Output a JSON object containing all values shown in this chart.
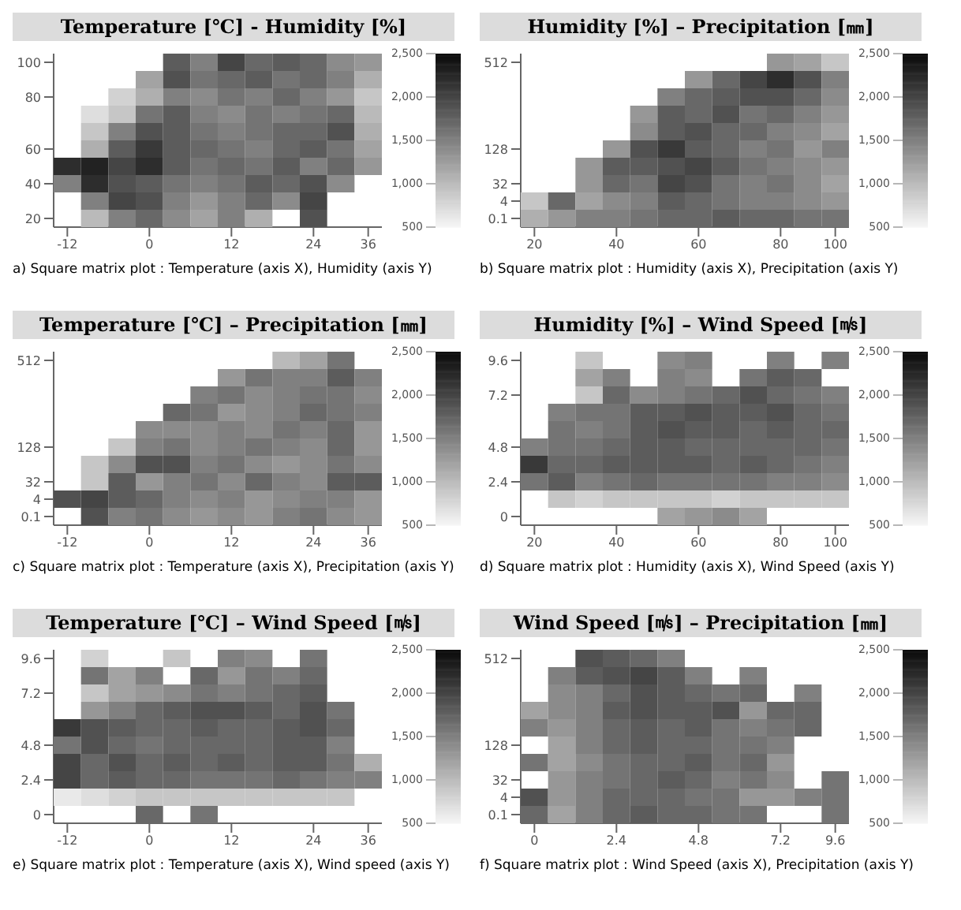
{
  "chart_data": [
    {
      "type": "heatmap",
      "title": "Temperature [℃] - Humidity [%]",
      "annotations": [
        "a) Square matrix plot : Temperature (axis X), Humidity (axis Y)"
      ],
      "categories": [
        "-12",
        null,
        null,
        "0",
        null,
        null,
        "12",
        null,
        null,
        "24",
        null,
        "36"
      ],
      "y_categories": [
        "100",
        null,
        "80",
        null,
        null,
        "60",
        null,
        "40",
        null,
        "20"
      ],
      "clim": [
        500,
        2500
      ],
      "cticks": [
        {
          "value": 500,
          "label": "500"
        },
        {
          "value": 1000,
          "label": "1,000"
        },
        {
          "value": 1500,
          "label": "1,500"
        },
        {
          "value": 2000,
          "label": "2,000"
        },
        {
          "value": 2500,
          "label": "2,500"
        }
      ],
      "cells": [
        [
          null,
          null,
          null,
          null,
          1800,
          1500,
          2000,
          1700,
          1800,
          1700,
          1400,
          1300
        ],
        [
          null,
          null,
          null,
          1200,
          1900,
          1600,
          1700,
          1800,
          1600,
          1700,
          1500,
          1100
        ],
        [
          null,
          null,
          800,
          1100,
          1500,
          1400,
          1600,
          1500,
          1700,
          1500,
          1300,
          900
        ],
        [
          null,
          700,
          900,
          1600,
          1800,
          1500,
          1400,
          1600,
          1500,
          1600,
          1700,
          1000
        ],
        [
          null,
          900,
          1500,
          1900,
          1800,
          1600,
          1500,
          1600,
          1700,
          1700,
          1900,
          1100
        ],
        [
          null,
          1100,
          1800,
          2100,
          1800,
          1700,
          1600,
          1500,
          1700,
          1800,
          1600,
          1200
        ],
        [
          2200,
          2300,
          2000,
          2200,
          1800,
          1600,
          1700,
          1600,
          1800,
          1500,
          1700,
          1300
        ],
        [
          1500,
          2200,
          1900,
          1800,
          1600,
          1500,
          1600,
          1800,
          1700,
          1900,
          1400,
          null
        ],
        [
          null,
          1500,
          2000,
          1900,
          1500,
          1300,
          1500,
          1700,
          1400,
          2000,
          null,
          null
        ],
        [
          null,
          1000,
          1500,
          1700,
          1400,
          1200,
          1500,
          1100,
          null,
          1900,
          null,
          null
        ]
      ]
    },
    {
      "type": "heatmap",
      "title": "Humidity [%] – Precipitation [㎜]",
      "annotations": [
        "b) Square matrix plot : Humidity (axis X), Precipitation (axis Y)"
      ],
      "categories": [
        "20",
        null,
        null,
        "40",
        null,
        null,
        "60",
        null,
        null,
        "80",
        null,
        "100"
      ],
      "y_categories": [
        "512",
        null,
        null,
        null,
        null,
        "128",
        null,
        "32",
        "4",
        "0.1"
      ],
      "clim": [
        500,
        2500
      ],
      "cticks": [
        {
          "value": 500,
          "label": "500"
        },
        {
          "value": 1000,
          "label": "1,000"
        },
        {
          "value": 1500,
          "label": "1,500"
        },
        {
          "value": 2000,
          "label": "2,000"
        },
        {
          "value": 2500,
          "label": "2,500"
        }
      ],
      "cells": [
        [
          null,
          null,
          null,
          null,
          null,
          null,
          null,
          null,
          null,
          1300,
          1200,
          900
        ],
        [
          null,
          null,
          null,
          null,
          null,
          null,
          1300,
          1700,
          2000,
          2200,
          1900,
          1500
        ],
        [
          null,
          null,
          null,
          null,
          null,
          1500,
          1700,
          1800,
          1900,
          1900,
          1700,
          1400
        ],
        [
          null,
          null,
          null,
          null,
          1300,
          1800,
          1700,
          1900,
          1600,
          1700,
          1500,
          1300
        ],
        [
          null,
          null,
          null,
          null,
          1400,
          1800,
          1900,
          1700,
          1700,
          1500,
          1400,
          1200
        ],
        [
          null,
          null,
          null,
          1300,
          1900,
          2100,
          1800,
          1700,
          1500,
          1600,
          1300,
          1500
        ],
        [
          null,
          null,
          1300,
          1800,
          1800,
          1900,
          2000,
          1800,
          1600,
          1500,
          1400,
          1300
        ],
        [
          null,
          null,
          1300,
          1700,
          1600,
          2000,
          1900,
          1600,
          1500,
          1600,
          1400,
          1200
        ],
        [
          900,
          1700,
          1200,
          1400,
          1500,
          1800,
          1700,
          1600,
          1500,
          1500,
          1400,
          1300
        ],
        [
          1100,
          1300,
          1500,
          1500,
          1600,
          1700,
          1700,
          1800,
          1700,
          1700,
          1600,
          1600
        ]
      ]
    },
    {
      "type": "heatmap",
      "title": "Temperature [℃] – Precipitation [㎜]",
      "annotations": [
        "c) Square matrix plot : Temperature (axis X), Precipitation (axis Y)"
      ],
      "categories": [
        "-12",
        null,
        null,
        "0",
        null,
        null,
        "12",
        null,
        null,
        "24",
        null,
        "36"
      ],
      "y_categories": [
        "512",
        null,
        null,
        null,
        null,
        "128",
        null,
        "32",
        "4",
        "0.1"
      ],
      "clim": [
        500,
        2500
      ],
      "cticks": [
        {
          "value": 500,
          "label": "500"
        },
        {
          "value": 1000,
          "label": "1,000"
        },
        {
          "value": 1500,
          "label": "1,500"
        },
        {
          "value": 2000,
          "label": "2,000"
        },
        {
          "value": 2500,
          "label": "2,500"
        }
      ],
      "cells": [
        [
          null,
          null,
          null,
          null,
          null,
          null,
          null,
          null,
          1000,
          1200,
          1600,
          null
        ],
        [
          null,
          null,
          null,
          null,
          null,
          null,
          1300,
          1600,
          1500,
          1500,
          1800,
          1500
        ],
        [
          null,
          null,
          null,
          null,
          null,
          1500,
          1600,
          1400,
          1500,
          1600,
          1600,
          1400
        ],
        [
          null,
          null,
          null,
          null,
          1700,
          1600,
          1300,
          1400,
          1500,
          1700,
          1600,
          1500
        ],
        [
          null,
          null,
          null,
          1400,
          1400,
          1400,
          1500,
          1400,
          1600,
          1500,
          1700,
          1300
        ],
        [
          null,
          null,
          900,
          1500,
          1600,
          1400,
          1500,
          1600,
          1500,
          1400,
          1700,
          1300
        ],
        [
          null,
          900,
          1400,
          1900,
          1900,
          1500,
          1600,
          1400,
          1300,
          1400,
          1600,
          1400
        ],
        [
          null,
          900,
          1800,
          1300,
          1500,
          1600,
          1400,
          1700,
          1500,
          1400,
          1800,
          1800
        ],
        [
          1900,
          2000,
          1800,
          1700,
          1500,
          1400,
          1500,
          1300,
          1400,
          1500,
          1500,
          1300
        ],
        [
          null,
          1900,
          1500,
          1600,
          1400,
          1300,
          1400,
          1300,
          1500,
          1600,
          1400,
          1300
        ]
      ]
    },
    {
      "type": "heatmap",
      "title": "Humidity [%] – Wind Speed [㎧]",
      "annotations": [
        "d) Square matrix plot : Humidity (axis X), Wind Speed (axis Y)"
      ],
      "categories": [
        "20",
        null,
        null,
        "40",
        null,
        null,
        "60",
        null,
        null,
        "80",
        null,
        "100"
      ],
      "y_categories": [
        "9.6",
        null,
        "7.2",
        null,
        null,
        "4.8",
        null,
        "2.4",
        null,
        "0"
      ],
      "clim": [
        500,
        2500
      ],
      "cticks": [
        {
          "value": 500,
          "label": "500"
        },
        {
          "value": 1000,
          "label": "1,000"
        },
        {
          "value": 1500,
          "label": "1,500"
        },
        {
          "value": 2000,
          "label": "2,000"
        },
        {
          "value": 2500,
          "label": "2,500"
        }
      ],
      "cells": [
        [
          null,
          null,
          900,
          null,
          null,
          1400,
          1500,
          null,
          null,
          1500,
          null,
          1500
        ],
        [
          null,
          null,
          1200,
          1500,
          null,
          1500,
          1400,
          null,
          1600,
          1800,
          1700,
          null
        ],
        [
          null,
          null,
          900,
          1700,
          1400,
          1500,
          1600,
          1700,
          1900,
          1700,
          1600,
          1500
        ],
        [
          null,
          1500,
          1600,
          1600,
          1800,
          1800,
          1900,
          1800,
          1800,
          1900,
          1700,
          1600
        ],
        [
          null,
          1600,
          1500,
          1600,
          1800,
          1900,
          1800,
          1800,
          1700,
          1800,
          1700,
          1700
        ],
        [
          1500,
          1600,
          1600,
          1700,
          1800,
          1800,
          1700,
          1700,
          1700,
          1700,
          1700,
          1600
        ],
        [
          2100,
          1700,
          1700,
          1800,
          1800,
          1800,
          1800,
          1700,
          1800,
          1700,
          1600,
          1500
        ],
        [
          1600,
          1800,
          1500,
          1600,
          1700,
          1600,
          1600,
          1600,
          1600,
          1500,
          1500,
          1400
        ],
        [
          null,
          900,
          800,
          900,
          900,
          900,
          900,
          800,
          900,
          900,
          900,
          900
        ],
        [
          null,
          null,
          null,
          null,
          null,
          1200,
          1300,
          1400,
          1200,
          null,
          null,
          null
        ]
      ]
    },
    {
      "type": "heatmap",
      "title": "Temperature [℃] – Wind Speed [㎧]",
      "annotations": [
        "e) Square matrix plot : Temperature (axis X), Wind speed (axis Y)"
      ],
      "categories": [
        "-12",
        null,
        null,
        "0",
        null,
        null,
        "12",
        null,
        null,
        "24",
        null,
        "36"
      ],
      "y_categories": [
        "9.6",
        null,
        "7.2",
        null,
        null,
        "4.8",
        null,
        "2.4",
        null,
        "0"
      ],
      "clim": [
        500,
        2500
      ],
      "cticks": [
        {
          "value": 500,
          "label": "500"
        },
        {
          "value": 1000,
          "label": "1,000"
        },
        {
          "value": 1500,
          "label": "1,500"
        },
        {
          "value": 2000,
          "label": "2,000"
        },
        {
          "value": 2500,
          "label": "2,500"
        }
      ],
      "cells": [
        [
          null,
          800,
          null,
          null,
          900,
          null,
          1500,
          1400,
          null,
          1600,
          null,
          null
        ],
        [
          null,
          1600,
          1200,
          1500,
          null,
          1700,
          1300,
          1600,
          1500,
          1700,
          null,
          null
        ],
        [
          null,
          900,
          1200,
          1300,
          1400,
          1600,
          1500,
          1600,
          1700,
          1800,
          null,
          null
        ],
        [
          null,
          1300,
          1500,
          1700,
          1800,
          1900,
          1900,
          1800,
          1700,
          1900,
          1600,
          null
        ],
        [
          2100,
          1900,
          1800,
          1700,
          1700,
          1800,
          1700,
          1700,
          1800,
          1900,
          1700,
          null
        ],
        [
          1600,
          1900,
          1700,
          1600,
          1700,
          1700,
          1700,
          1700,
          1800,
          1800,
          1500,
          null
        ],
        [
          2000,
          1700,
          1900,
          1700,
          1800,
          1700,
          1800,
          1700,
          1800,
          1800,
          1600,
          1100
        ],
        [
          2000,
          1700,
          1800,
          1700,
          1700,
          1600,
          1600,
          1600,
          1700,
          1600,
          1500,
          1500
        ],
        [
          600,
          700,
          800,
          900,
          900,
          900,
          900,
          900,
          900,
          900,
          900,
          null
        ],
        [
          null,
          null,
          null,
          1700,
          null,
          1600,
          null,
          null,
          null,
          null,
          null,
          null
        ]
      ]
    },
    {
      "type": "heatmap",
      "title": "Wind Speed [㎧] – Precipitation [㎜]",
      "annotations": [
        "f) Square matrix plot : Wind Speed (axis X), Precipitation (axis Y)"
      ],
      "categories": [
        "0",
        null,
        null,
        "2.4",
        null,
        null,
        "4.8",
        null,
        null,
        "7.2",
        null,
        "9.6"
      ],
      "y_categories": [
        "512",
        null,
        null,
        null,
        null,
        "128",
        null,
        "32",
        "4",
        "0.1"
      ],
      "clim": [
        500,
        2500
      ],
      "cticks": [
        {
          "value": 500,
          "label": "500"
        },
        {
          "value": 1000,
          "label": "1,000"
        },
        {
          "value": 1500,
          "label": "1,500"
        },
        {
          "value": 2000,
          "label": "2,000"
        },
        {
          "value": 2500,
          "label": "2,500"
        }
      ],
      "cells": [
        [
          null,
          null,
          1900,
          1800,
          1700,
          1500,
          null,
          null,
          null,
          null,
          null,
          null
        ],
        [
          null,
          1500,
          1800,
          1900,
          2000,
          1800,
          1500,
          null,
          1500,
          null,
          null,
          null
        ],
        [
          null,
          1400,
          1500,
          1700,
          1900,
          1800,
          1700,
          1600,
          1700,
          null,
          1500,
          null
        ],
        [
          1200,
          1400,
          1500,
          1800,
          1900,
          1800,
          1800,
          1900,
          1300,
          1700,
          1700,
          null
        ],
        [
          1500,
          1300,
          1500,
          1700,
          1800,
          1700,
          1800,
          1600,
          1500,
          1600,
          1700,
          null
        ],
        [
          null,
          1200,
          1500,
          1700,
          1800,
          1700,
          1700,
          1600,
          1600,
          1500,
          null,
          null
        ],
        [
          1600,
          1200,
          1400,
          1600,
          1700,
          1700,
          1800,
          1600,
          1700,
          1300,
          null,
          null
        ],
        [
          null,
          1300,
          1500,
          1600,
          1700,
          1800,
          1700,
          1500,
          1600,
          1400,
          null,
          1600
        ],
        [
          1900,
          1300,
          1500,
          1700,
          1700,
          1700,
          1600,
          1600,
          1300,
          1300,
          1500,
          1600
        ],
        [
          1700,
          1200,
          1500,
          1700,
          1800,
          1700,
          1700,
          1600,
          1600,
          null,
          null,
          1600
        ]
      ]
    }
  ]
}
